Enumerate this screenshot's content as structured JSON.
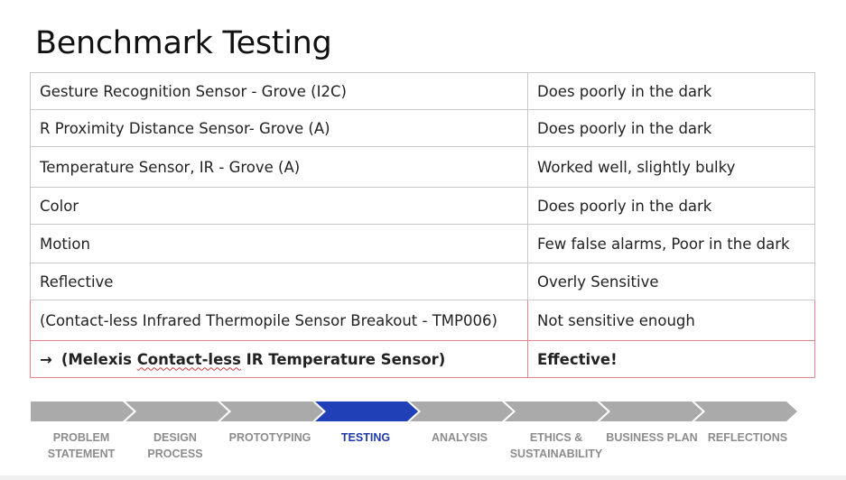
{
  "slide": {
    "title": "Benchmark Testing"
  },
  "table": {
    "rows": [
      {
        "sensor": "Gesture Recognition Sensor - Grove (I2C)",
        "result": "Does poorly in the dark"
      },
      {
        "sensor": "R Proximity Distance Sensor- Grove (A)",
        "result": "Does poorly in the dark"
      },
      {
        "sensor": "Temperature Sensor, IR - Grove (A)",
        "result": "Worked well, slightly bulky"
      },
      {
        "sensor": "Color",
        "result": "Does poorly in the dark"
      },
      {
        "sensor": "Motion",
        "result": "Few false alarms, Poor in the dark"
      },
      {
        "sensor": "Reflective",
        "result": "Overly Sensitive"
      },
      {
        "sensor": "(Contact-less Infrared Thermopile Sensor Breakout - TMP006)",
        "result": "Not sensitive enough"
      },
      {
        "arrow": "→",
        "sensor_prefix": "(Melexis ",
        "sensor_underlined": "Contact-less",
        "sensor_suffix": " IR Temperature Sensor)",
        "result": "Effective!"
      }
    ]
  },
  "progress": {
    "active_step": "TESTING",
    "active_color": "#2040b8",
    "inactive_color": "#aaaaaa",
    "steps": [
      {
        "line1": "PROBLEM",
        "line2": "STATEMENT"
      },
      {
        "line1": "DESIGN",
        "line2": "PROCESS"
      },
      {
        "line1": "",
        "line2": "PROTOTYPING"
      },
      {
        "line1": "",
        "line2": "TESTING"
      },
      {
        "line1": "",
        "line2": "ANALYSIS"
      },
      {
        "line1": "ETHICS &",
        "line2": "SUSTAINABILITY"
      },
      {
        "line1": "",
        "line2": "BUSINESS PLAN"
      },
      {
        "line1": "",
        "line2": "REFLECTIONS"
      }
    ]
  }
}
